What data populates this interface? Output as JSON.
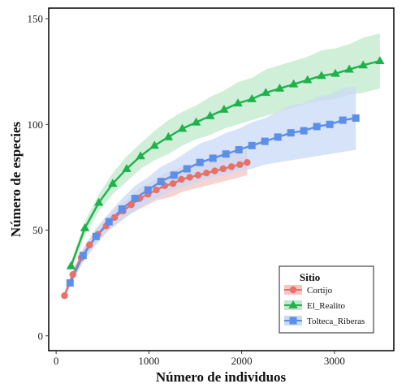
{
  "chart_data": {
    "type": "line",
    "xlabel": "Número de individuos",
    "ylabel": "Número de especies",
    "xlim": [
      -80,
      3640
    ],
    "ylim": [
      -7,
      155
    ],
    "x_ticks": [
      0,
      1000,
      2000,
      3000
    ],
    "y_ticks": [
      0,
      50,
      100,
      150
    ],
    "grid": false,
    "legend": {
      "title": "Sitio",
      "placement": "bottom-right"
    },
    "series": [
      {
        "name": "Cortijo",
        "color": "#e8706b",
        "band_color": "#f6c5c2",
        "marker": "circle",
        "x": [
          90,
          180,
          270,
          360,
          450,
          540,
          630,
          720,
          810,
          900,
          990,
          1080,
          1170,
          1260,
          1350,
          1440,
          1530,
          1620,
          1710,
          1800,
          1890,
          1980,
          2060
        ],
        "y": [
          19,
          29,
          37,
          43,
          48,
          52,
          56,
          59,
          62,
          65,
          67,
          69,
          71,
          72,
          74,
          75,
          76,
          77,
          78,
          79,
          80,
          81,
          82
        ],
        "lower": [
          17,
          27,
          34,
          40,
          45,
          49,
          52,
          55,
          58,
          60,
          62,
          64,
          65,
          66,
          68,
          69,
          70,
          71,
          72,
          73,
          74,
          75,
          76
        ],
        "upper": [
          21,
          31,
          40,
          46,
          51,
          55,
          60,
          63,
          66,
          70,
          72,
          74,
          77,
          78,
          80,
          81,
          82,
          83,
          84,
          85,
          86,
          87,
          88
        ]
      },
      {
        "name": "El_Realito",
        "color": "#1db34a",
        "band_color": "#bfe9cb",
        "marker": "triangle",
        "x": [
          160,
          310,
          460,
          610,
          760,
          910,
          1060,
          1210,
          1360,
          1510,
          1660,
          1810,
          1960,
          2110,
          2260,
          2410,
          2560,
          2710,
          2860,
          3010,
          3160,
          3310,
          3490
        ],
        "y": [
          33,
          51,
          63,
          72,
          79,
          85,
          90,
          94,
          98,
          101,
          104,
          107,
          110,
          112,
          115,
          117,
          119,
          121,
          123,
          124,
          126,
          128,
          130
        ],
        "lower": [
          31,
          48,
          59,
          67,
          73,
          79,
          83,
          86,
          90,
          93,
          95,
          98,
          100,
          102,
          104,
          106,
          108,
          110,
          111,
          112,
          114,
          115,
          117
        ],
        "upper": [
          35,
          54,
          67,
          77,
          85,
          91,
          97,
          102,
          106,
          109,
          113,
          116,
          120,
          122,
          126,
          128,
          130,
          132,
          135,
          136,
          138,
          141,
          143
        ]
      },
      {
        "name": "Tolteca_Riberas",
        "color": "#5b8fe8",
        "band_color": "#c9daf6",
        "marker": "square",
        "x": [
          150,
          290,
          430,
          570,
          710,
          850,
          990,
          1130,
          1270,
          1410,
          1550,
          1690,
          1830,
          1970,
          2110,
          2250,
          2390,
          2530,
          2670,
          2810,
          2950,
          3090,
          3230
        ],
        "y": [
          25,
          38,
          47,
          54,
          60,
          65,
          69,
          73,
          76,
          79,
          82,
          84,
          86,
          88,
          90,
          92,
          94,
          96,
          97,
          99,
          100,
          102,
          103
        ],
        "lower": [
          23,
          35,
          43,
          50,
          55,
          59,
          63,
          66,
          69,
          71,
          73,
          75,
          76,
          78,
          79,
          81,
          82,
          83,
          84,
          85,
          86,
          87,
          88
        ],
        "upper": [
          27,
          41,
          51,
          58,
          65,
          71,
          75,
          80,
          83,
          87,
          91,
          93,
          96,
          98,
          101,
          103,
          106,
          109,
          110,
          113,
          114,
          117,
          118
        ]
      }
    ]
  }
}
